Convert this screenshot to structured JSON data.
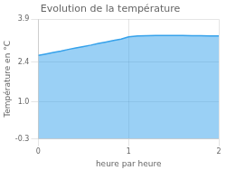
{
  "chart_data": {
    "type": "area",
    "title": "Evolution de la température",
    "xlabel": "heure par heure",
    "ylabel": "Température en °C",
    "x": [
      0.0,
      0.083,
      0.167,
      0.25,
      0.333,
      0.417,
      0.5,
      0.583,
      0.667,
      0.75,
      0.833,
      0.917,
      1.0,
      1.1,
      1.2,
      1.3,
      1.4,
      1.5,
      1.6,
      1.7,
      1.8,
      1.9,
      2.0
    ],
    "values": [
      2.63,
      2.68,
      2.73,
      2.78,
      2.84,
      2.89,
      2.94,
      2.99,
      3.05,
      3.1,
      3.15,
      3.2,
      3.28,
      3.31,
      3.32,
      3.33,
      3.33,
      3.33,
      3.33,
      3.32,
      3.32,
      3.31,
      3.31
    ],
    "xlim": [
      0,
      2
    ],
    "xticks": [
      0,
      1,
      2
    ],
    "ylim": [
      -0.3,
      3.9
    ],
    "yticks": [
      -0.3,
      {
        "value": 1.0,
        "label": "1.0"
      },
      2.4,
      3.9
    ],
    "grid": true
  }
}
